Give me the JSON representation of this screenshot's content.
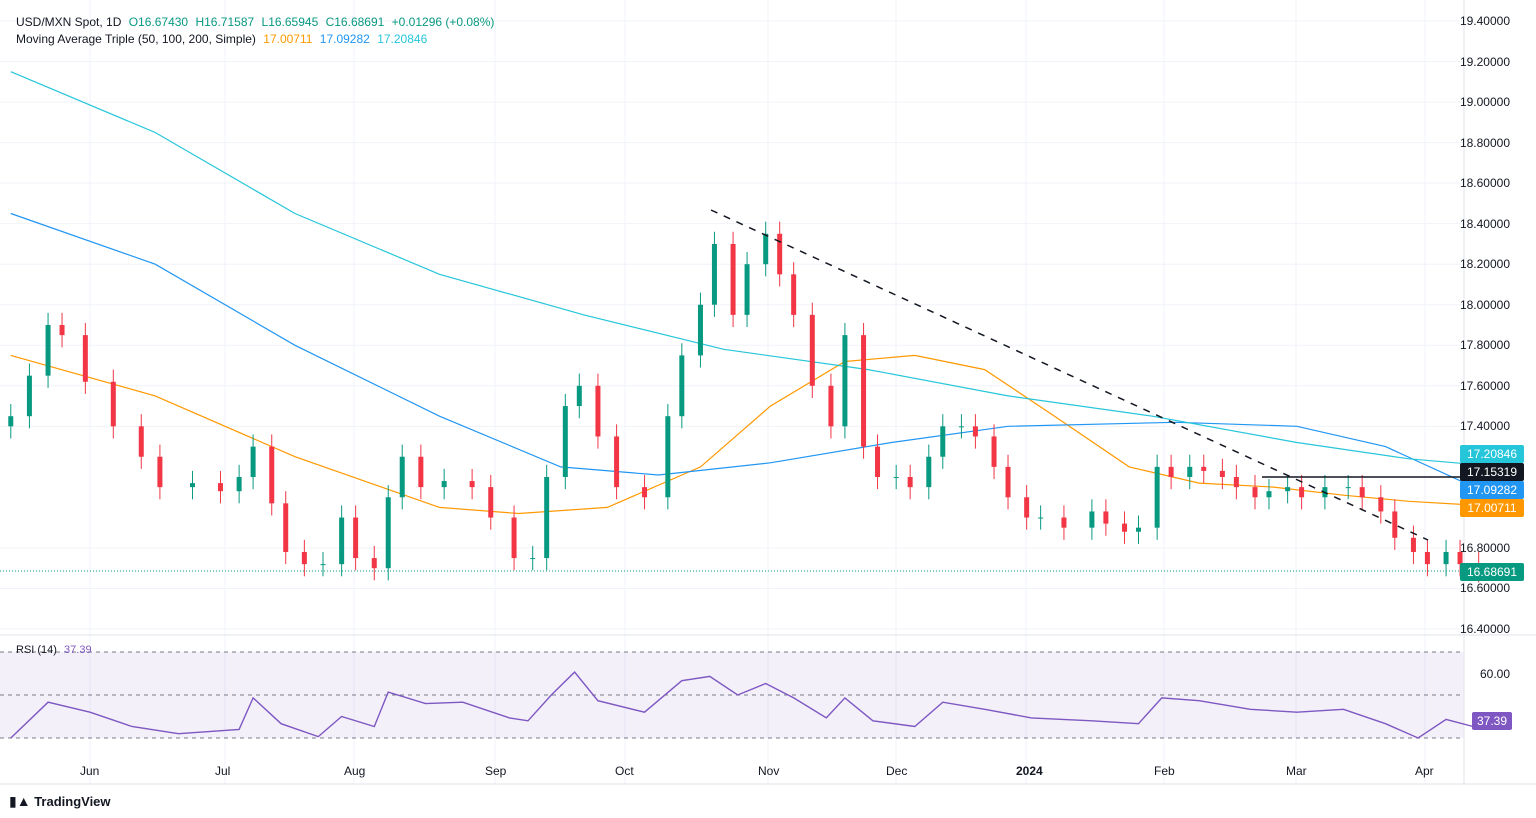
{
  "header": {
    "symbol": "USD/MXN Spot, 1D",
    "open": "O16.67430",
    "high": "H16.71587",
    "low": "L16.65945",
    "close": "C16.68691",
    "change": "+0.01296 (+0.08%)",
    "ma_title": "Moving Average Triple (50, 100, 200, Simple)",
    "ma50_value": "17.00711",
    "ma100_value": "17.09282",
    "ma200_value": "17.20846"
  },
  "rsi": {
    "title": "RSI (14)",
    "value": "37.39",
    "axis_label": "60.00"
  },
  "price_tags": {
    "ma200": "17.20846",
    "level": "17.15319",
    "ma100": "17.09282",
    "ma50": "17.00711",
    "last": "16.68691"
  },
  "colors": {
    "up": "#089981",
    "down": "#f23645",
    "ma50": "#ff9800",
    "ma100": "#2196f3",
    "ma200": "#26c6da",
    "rsi": "#7e57c2",
    "level": "#131722"
  },
  "footer": {
    "brand": "TradingView"
  },
  "chart_data": {
    "type": "candlestick",
    "title": "USD/MXN Spot, 1D",
    "y_ticks": [
      "19.40000",
      "19.20000",
      "19.00000",
      "18.80000",
      "18.60000",
      "18.40000",
      "18.20000",
      "18.00000",
      "17.80000",
      "17.60000",
      "17.40000",
      "16.80000",
      "16.60000",
      "16.40000"
    ],
    "x_ticks": [
      "Jun",
      "Jul",
      "Aug",
      "Sep",
      "Oct",
      "Nov",
      "Dec",
      "2024",
      "Feb",
      "Mar",
      "Apr"
    ],
    "ylim": [
      16.4,
      19.4
    ],
    "grid": true,
    "series": [
      {
        "name": "USD/MXN",
        "close_points": [
          {
            "date": "May 15",
            "value": 17.45
          },
          {
            "date": "May 19",
            "value": 17.65
          },
          {
            "date": "May 23",
            "value": 17.9
          },
          {
            "date": "May 26",
            "value": 17.85
          },
          {
            "date": "May 31",
            "value": 17.62
          },
          {
            "date": "Jun 6",
            "value": 17.4
          },
          {
            "date": "Jun 12",
            "value": 17.25
          },
          {
            "date": "Jun 16",
            "value": 17.1
          },
          {
            "date": "Jun 23",
            "value": 17.12
          },
          {
            "date": "Jun 29",
            "value": 17.08
          },
          {
            "date": "Jul 3",
            "value": 17.15
          },
          {
            "date": "Jul 6",
            "value": 17.3
          },
          {
            "date": "Jul 10",
            "value": 17.02
          },
          {
            "date": "Jul 13",
            "value": 16.78
          },
          {
            "date": "Jul 17",
            "value": 16.72
          },
          {
            "date": "Jul 21",
            "value": 16.72
          },
          {
            "date": "Jul 25",
            "value": 16.95
          },
          {
            "date": "Jul 28",
            "value": 16.75
          },
          {
            "date": "Aug 1",
            "value": 16.7
          },
          {
            "date": "Aug 4",
            "value": 17.05
          },
          {
            "date": "Aug 7",
            "value": 17.25
          },
          {
            "date": "Aug 11",
            "value": 17.1
          },
          {
            "date": "Aug 16",
            "value": 17.13
          },
          {
            "date": "Aug 22",
            "value": 17.1
          },
          {
            "date": "Aug 26",
            "value": 16.95
          },
          {
            "date": "Aug 31",
            "value": 16.75
          },
          {
            "date": "Sep 4",
            "value": 16.75
          },
          {
            "date": "Sep 7",
            "value": 17.15
          },
          {
            "date": "Sep 11",
            "value": 17.5
          },
          {
            "date": "Sep 14",
            "value": 17.6
          },
          {
            "date": "Sep 18",
            "value": 17.35
          },
          {
            "date": "Sep 22",
            "value": 17.1
          },
          {
            "date": "Sep 28",
            "value": 17.05
          },
          {
            "date": "Oct 3",
            "value": 17.45
          },
          {
            "date": "Oct 6",
            "value": 17.75
          },
          {
            "date": "Oct 10",
            "value": 18.0
          },
          {
            "date": "Oct 13",
            "value": 18.3
          },
          {
            "date": "Oct 17",
            "value": 17.95
          },
          {
            "date": "Oct 20",
            "value": 18.2
          },
          {
            "date": "Oct 24",
            "value": 18.35
          },
          {
            "date": "Oct 27",
            "value": 18.15
          },
          {
            "date": "Oct 30",
            "value": 17.95
          },
          {
            "date": "Nov 3",
            "value": 17.6
          },
          {
            "date": "Nov 7",
            "value": 17.4
          },
          {
            "date": "Nov 10",
            "value": 17.85
          },
          {
            "date": "Nov 14",
            "value": 17.3
          },
          {
            "date": "Nov 17",
            "value": 17.15
          },
          {
            "date": "Nov 21",
            "value": 17.15
          },
          {
            "date": "Nov 24",
            "value": 17.1
          },
          {
            "date": "Nov 28",
            "value": 17.25
          },
          {
            "date": "Dec 1",
            "value": 17.4
          },
          {
            "date": "Dec 5",
            "value": 17.4
          },
          {
            "date": "Dec 8",
            "value": 17.35
          },
          {
            "date": "Dec 12",
            "value": 17.2
          },
          {
            "date": "Dec 15",
            "value": 17.05
          },
          {
            "date": "Dec 19",
            "value": 16.95
          },
          {
            "date": "Dec 22",
            "value": 16.95
          },
          {
            "date": "Dec 27",
            "value": 16.9
          },
          {
            "date": "Jan 2",
            "value": 16.98
          },
          {
            "date": "Jan 5",
            "value": 16.92
          },
          {
            "date": "Jan 9",
            "value": 16.88
          },
          {
            "date": "Jan 12",
            "value": 16.9
          },
          {
            "date": "Jan 16",
            "value": 17.2
          },
          {
            "date": "Jan 19",
            "value": 17.15
          },
          {
            "date": "Jan 23",
            "value": 17.2
          },
          {
            "date": "Jan 26",
            "value": 17.18
          },
          {
            "date": "Jan 30",
            "value": 17.15
          },
          {
            "date": "Feb 2",
            "value": 17.1
          },
          {
            "date": "Feb 6",
            "value": 17.05
          },
          {
            "date": "Feb 9",
            "value": 17.08
          },
          {
            "date": "Feb 13",
            "value": 17.1
          },
          {
            "date": "Feb 16",
            "value": 17.05
          },
          {
            "date": "Feb 21",
            "value": 17.1
          },
          {
            "date": "Feb 26",
            "value": 17.1
          },
          {
            "date": "Feb 29",
            "value": 17.05
          },
          {
            "date": "Mar 4",
            "value": 16.98
          },
          {
            "date": "Mar 7",
            "value": 16.85
          },
          {
            "date": "Mar 11",
            "value": 16.78
          },
          {
            "date": "Mar 14",
            "value": 16.72
          },
          {
            "date": "Mar 18",
            "value": 16.78
          },
          {
            "date": "Mar 21",
            "value": 16.72
          },
          {
            "date": "Mar 25",
            "value": 16.69
          }
        ]
      },
      {
        "name": "MA 50",
        "points": [
          {
            "date": "May 15",
            "value": 17.75
          },
          {
            "date": "Jun 15",
            "value": 17.55
          },
          {
            "date": "Jul 15",
            "value": 17.25
          },
          {
            "date": "Aug 15",
            "value": 17.0
          },
          {
            "date": "Sep 1",
            "value": 16.97
          },
          {
            "date": "Sep 20",
            "value": 17.0
          },
          {
            "date": "Oct 10",
            "value": 17.2
          },
          {
            "date": "Oct 25",
            "value": 17.5
          },
          {
            "date": "Nov 10",
            "value": 17.72
          },
          {
            "date": "Nov 25",
            "value": 17.75
          },
          {
            "date": "Dec 10",
            "value": 17.68
          },
          {
            "date": "Dec 25",
            "value": 17.45
          },
          {
            "date": "Jan 10",
            "value": 17.2
          },
          {
            "date": "Jan 25",
            "value": 17.12
          },
          {
            "date": "Feb 10",
            "value": 17.1
          },
          {
            "date": "Feb 25",
            "value": 17.06
          },
          {
            "date": "Mar 10",
            "value": 17.03
          },
          {
            "date": "Mar 25",
            "value": 17.01
          }
        ]
      },
      {
        "name": "MA 100",
        "points": [
          {
            "date": "May 15",
            "value": 18.45
          },
          {
            "date": "Jun 15",
            "value": 18.2
          },
          {
            "date": "Jul 15",
            "value": 17.8
          },
          {
            "date": "Aug 15",
            "value": 17.45
          },
          {
            "date": "Sep 10",
            "value": 17.2
          },
          {
            "date": "Oct 1",
            "value": 17.16
          },
          {
            "date": "Oct 25",
            "value": 17.22
          },
          {
            "date": "Nov 20",
            "value": 17.32
          },
          {
            "date": "Dec 15",
            "value": 17.4
          },
          {
            "date": "Jan 20",
            "value": 17.42
          },
          {
            "date": "Feb 15",
            "value": 17.4
          },
          {
            "date": "Mar 5",
            "value": 17.3
          },
          {
            "date": "Mar 25",
            "value": 17.09
          }
        ]
      },
      {
        "name": "MA 200",
        "points": [
          {
            "date": "May 15",
            "value": 19.15
          },
          {
            "date": "Jun 15",
            "value": 18.85
          },
          {
            "date": "Jul 15",
            "value": 18.45
          },
          {
            "date": "Aug 15",
            "value": 18.15
          },
          {
            "date": "Sep 15",
            "value": 17.95
          },
          {
            "date": "Oct 15",
            "value": 17.78
          },
          {
            "date": "Nov 15",
            "value": 17.68
          },
          {
            "date": "Dec 15",
            "value": 17.55
          },
          {
            "date": "Jan 15",
            "value": 17.45
          },
          {
            "date": "Feb 15",
            "value": 17.32
          },
          {
            "date": "Mar 10",
            "value": 17.24
          },
          {
            "date": "Mar 25",
            "value": 17.21
          }
        ]
      },
      {
        "name": "RSI (14)",
        "points": [
          {
            "date": "May 15",
            "value": 30
          },
          {
            "date": "May 23",
            "value": 55
          },
          {
            "date": "Jun 1",
            "value": 48
          },
          {
            "date": "Jun 10",
            "value": 38
          },
          {
            "date": "Jun 20",
            "value": 33
          },
          {
            "date": "Jul 3",
            "value": 36
          },
          {
            "date": "Jul 6",
            "value": 58
          },
          {
            "date": "Jul 12",
            "value": 40
          },
          {
            "date": "Jul 20",
            "value": 31
          },
          {
            "date": "Jul 25",
            "value": 45
          },
          {
            "date": "Aug 1",
            "value": 38
          },
          {
            "date": "Aug 4",
            "value": 62
          },
          {
            "date": "Aug 12",
            "value": 54
          },
          {
            "date": "Aug 20",
            "value": 55
          },
          {
            "date": "Aug 30",
            "value": 44
          },
          {
            "date": "Sep 3",
            "value": 42
          },
          {
            "date": "Sep 8",
            "value": 60
          },
          {
            "date": "Sep 13",
            "value": 76
          },
          {
            "date": "Sep 18",
            "value": 56
          },
          {
            "date": "Sep 28",
            "value": 48
          },
          {
            "date": "Oct 6",
            "value": 70
          },
          {
            "date": "Oct 12",
            "value": 73
          },
          {
            "date": "Oct 18",
            "value": 60
          },
          {
            "date": "Oct 24",
            "value": 68
          },
          {
            "date": "Oct 30",
            "value": 58
          },
          {
            "date": "Nov 6",
            "value": 44
          },
          {
            "date": "Nov 10",
            "value": 58
          },
          {
            "date": "Nov 16",
            "value": 42
          },
          {
            "date": "Nov 25",
            "value": 38
          },
          {
            "date": "Dec 1",
            "value": 55
          },
          {
            "date": "Dec 10",
            "value": 50
          },
          {
            "date": "Dec 20",
            "value": 44
          },
          {
            "date": "Jan 2",
            "value": 42
          },
          {
            "date": "Jan 12",
            "value": 40
          },
          {
            "date": "Jan 17",
            "value": 58
          },
          {
            "date": "Jan 25",
            "value": 56
          },
          {
            "date": "Feb 5",
            "value": 50
          },
          {
            "date": "Feb 15",
            "value": 48
          },
          {
            "date": "Feb 25",
            "value": 50
          },
          {
            "date": "Mar 5",
            "value": 40
          },
          {
            "date": "Mar 12",
            "value": 30
          },
          {
            "date": "Mar 18",
            "value": 43
          },
          {
            "date": "Mar 25",
            "value": 37
          }
        ]
      }
    ],
    "annotations": [
      "descending dashed trendline from Oct high near 18.46",
      "horizontal level 17.15319"
    ]
  }
}
